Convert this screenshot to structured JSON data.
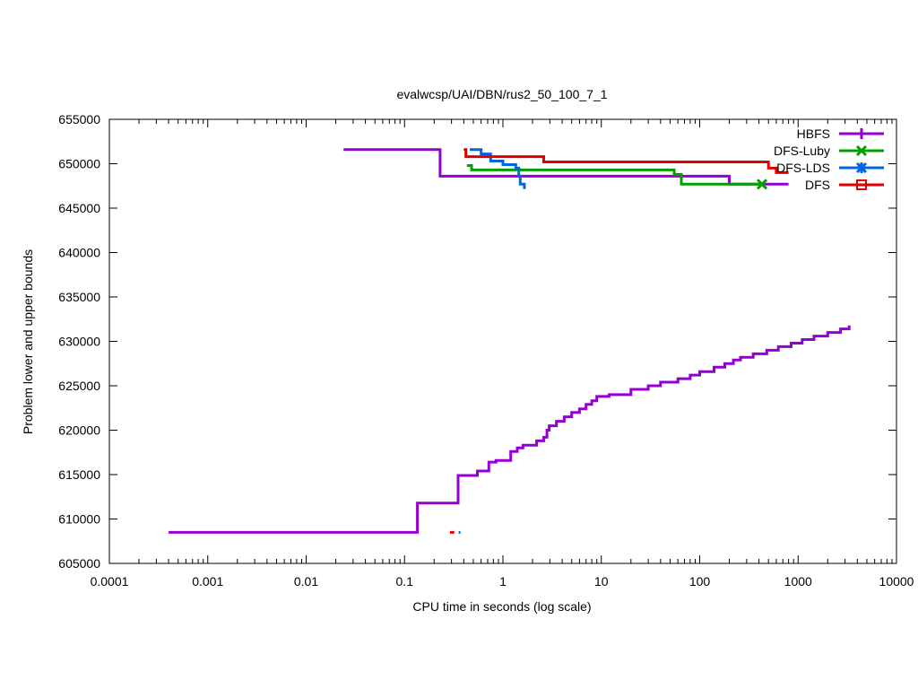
{
  "chart_data": {
    "type": "line",
    "title": "evalwcsp/UAI/DBN/rus2_50_100_7_1",
    "xlabel": "CPU time in seconds (log scale)",
    "ylabel": "Problem lower and upper bounds",
    "x_scale": "log",
    "xlim": [
      0.0001,
      10000
    ],
    "ylim": [
      605000,
      655000
    ],
    "x_ticks": [
      0.0001,
      0.001,
      0.01,
      0.1,
      1,
      10,
      100,
      1000,
      10000
    ],
    "x_tick_labels": [
      "0.0001",
      "0.001",
      "0.01",
      "0.1",
      "1",
      "10",
      "100",
      "1000",
      "10000"
    ],
    "y_ticks": [
      605000,
      610000,
      615000,
      620000,
      625000,
      630000,
      635000,
      640000,
      645000,
      650000,
      655000
    ],
    "y_tick_labels": [
      "605000",
      "610000",
      "615000",
      "620000",
      "625000",
      "630000",
      "635000",
      "640000",
      "645000",
      "650000",
      "655000"
    ],
    "grid": false,
    "legend_position": "top-right",
    "series": [
      {
        "name": "HBFS",
        "color": "#9400d3",
        "marker": "plus",
        "upper_bound": [
          [
            0.024,
            651600
          ],
          [
            0.23,
            651600
          ],
          [
            0.23,
            648600
          ],
          [
            200,
            648600
          ],
          [
            200,
            647700
          ],
          [
            800,
            647700
          ]
        ],
        "lower_bound": [
          [
            0.0004,
            608500
          ],
          [
            0.135,
            608500
          ],
          [
            0.135,
            611800
          ],
          [
            0.35,
            611800
          ],
          [
            0.35,
            614900
          ],
          [
            0.55,
            614900
          ],
          [
            0.55,
            615400
          ],
          [
            0.72,
            615400
          ],
          [
            0.72,
            616400
          ],
          [
            0.85,
            616400
          ],
          [
            0.85,
            616600
          ],
          [
            1.2,
            616600
          ],
          [
            1.2,
            617600
          ],
          [
            1.4,
            617600
          ],
          [
            1.4,
            618000
          ],
          [
            1.6,
            618000
          ],
          [
            1.6,
            618300
          ],
          [
            2.2,
            618300
          ],
          [
            2.2,
            618800
          ],
          [
            2.6,
            618800
          ],
          [
            2.6,
            619200
          ],
          [
            2.8,
            619200
          ],
          [
            2.8,
            620000
          ],
          [
            2.95,
            620000
          ],
          [
            2.95,
            620500
          ],
          [
            3.5,
            620500
          ],
          [
            3.5,
            621000
          ],
          [
            4.2,
            621000
          ],
          [
            4.2,
            621500
          ],
          [
            5.0,
            621500
          ],
          [
            5.0,
            622000
          ],
          [
            6.0,
            622000
          ],
          [
            6.0,
            622400
          ],
          [
            7.0,
            622400
          ],
          [
            7.0,
            622900
          ],
          [
            8.0,
            622900
          ],
          [
            8.0,
            623300
          ],
          [
            9.0,
            623300
          ],
          [
            9.0,
            623800
          ],
          [
            12,
            623800
          ],
          [
            12,
            624000
          ],
          [
            20,
            624000
          ],
          [
            20,
            624600
          ],
          [
            30,
            624600
          ],
          [
            30,
            625000
          ],
          [
            40,
            625000
          ],
          [
            40,
            625400
          ],
          [
            60,
            625400
          ],
          [
            60,
            625800
          ],
          [
            80,
            625800
          ],
          [
            80,
            626200
          ],
          [
            100,
            626200
          ],
          [
            100,
            626600
          ],
          [
            140,
            626600
          ],
          [
            140,
            627100
          ],
          [
            180,
            627100
          ],
          [
            180,
            627500
          ],
          [
            220,
            627500
          ],
          [
            220,
            627900
          ],
          [
            260,
            627900
          ],
          [
            260,
            628200
          ],
          [
            350,
            628200
          ],
          [
            350,
            628600
          ],
          [
            480,
            628600
          ],
          [
            480,
            629000
          ],
          [
            630,
            629000
          ],
          [
            630,
            629400
          ],
          [
            850,
            629400
          ],
          [
            850,
            629800
          ],
          [
            1100,
            629800
          ],
          [
            1100,
            630200
          ],
          [
            1450,
            630200
          ],
          [
            1450,
            630600
          ],
          [
            2000,
            630600
          ],
          [
            2000,
            631000
          ],
          [
            2700,
            631000
          ],
          [
            2700,
            631400
          ],
          [
            3300,
            631400
          ],
          [
            3300,
            631800
          ]
        ]
      },
      {
        "name": "DFS-Luby",
        "color": "#00a000",
        "marker": "cross",
        "upper_bound": [
          [
            0.43,
            649800
          ],
          [
            0.48,
            649800
          ],
          [
            0.48,
            649300
          ],
          [
            1.3,
            649300
          ],
          [
            1.3,
            649300
          ],
          [
            55,
            649300
          ],
          [
            55,
            648800
          ],
          [
            65,
            648800
          ],
          [
            65,
            647700
          ],
          [
            430,
            647700
          ]
        ],
        "lower_bound": []
      },
      {
        "name": "DFS-LDS",
        "color": "#0066dd",
        "marker": "star",
        "upper_bound": [
          [
            0.46,
            651600
          ],
          [
            0.6,
            651600
          ],
          [
            0.6,
            651100
          ],
          [
            0.75,
            651100
          ],
          [
            0.75,
            650300
          ],
          [
            1.0,
            650300
          ],
          [
            1.0,
            649900
          ],
          [
            1.35,
            649900
          ],
          [
            1.35,
            649500
          ],
          [
            1.45,
            649500
          ],
          [
            1.45,
            648600
          ],
          [
            1.5,
            648600
          ],
          [
            1.5,
            647700
          ],
          [
            1.65,
            647700
          ],
          [
            1.65,
            647300
          ],
          [
            1.7,
            647300
          ]
        ],
        "lower_bound": [
          [
            0.355,
            608500
          ],
          [
            0.37,
            608500
          ]
        ]
      },
      {
        "name": "DFS",
        "color": "#e00000",
        "marker": "square",
        "upper_bound": [
          [
            0.4,
            651600
          ],
          [
            0.42,
            651600
          ],
          [
            0.42,
            650800
          ],
          [
            2.6,
            650800
          ],
          [
            2.6,
            650200
          ],
          [
            500,
            650200
          ],
          [
            500,
            649500
          ],
          [
            600,
            649500
          ],
          [
            600,
            649000
          ],
          [
            800,
            649000
          ]
        ],
        "lower_bound": [
          [
            0.29,
            608500
          ],
          [
            0.32,
            608500
          ]
        ]
      }
    ]
  }
}
